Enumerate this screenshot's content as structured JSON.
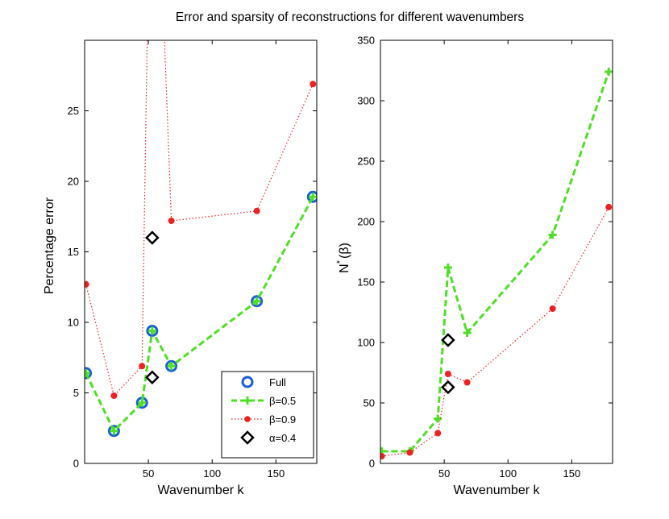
{
  "title": "Error and sparsity of reconstructions for different wavenumbers",
  "colors": {
    "full": "#1a5fd6",
    "beta05": "#4de024",
    "beta09": "#ef2020",
    "alpha": "#000000"
  },
  "chart_data": [
    {
      "type": "line",
      "panel": "left",
      "xlabel": "Wavenumber k",
      "ylabel": "Percentage error",
      "xlim": [
        0,
        182
      ],
      "ylim": [
        0,
        30
      ],
      "xticks": [
        50,
        100,
        150
      ],
      "yticks": [
        0,
        5,
        10,
        15,
        20,
        25
      ],
      "legend_position": "bottom-right",
      "series": [
        {
          "name": "Full",
          "style": "circle-markers",
          "x": [
            1,
            23,
            45,
            53,
            68,
            135,
            179
          ],
          "y": [
            6.4,
            2.3,
            4.3,
            9.4,
            6.9,
            11.5,
            18.9
          ]
        },
        {
          "name": "β=0.5",
          "style": "dashed-plus",
          "x": [
            1,
            23,
            45,
            53,
            68,
            135,
            179
          ],
          "y": [
            6.4,
            2.3,
            4.3,
            9.4,
            6.9,
            11.5,
            18.9
          ]
        },
        {
          "name": "β=0.9",
          "style": "dotted-dot",
          "x": [
            1,
            23,
            45,
            53,
            68,
            135,
            179
          ],
          "y": [
            12.7,
            4.8,
            6.9,
            null,
            17.2,
            17.9,
            26.9
          ],
          "note": "value at k=53 is beyond the upper axis limit"
        },
        {
          "name": "α=0.4",
          "style": "diamond-markers",
          "x": [
            53,
            53
          ],
          "y": [
            16.0,
            6.1
          ]
        }
      ],
      "legend": [
        "Full",
        "β=0.5",
        "β=0.9",
        "α=0.4"
      ]
    },
    {
      "type": "line",
      "panel": "right",
      "xlabel": "Wavenumber k",
      "ylabel_main": "N",
      "ylabel_sup": "*",
      "ylabel_tail": "(β)",
      "xlim": [
        0,
        182
      ],
      "ylim": [
        0,
        350
      ],
      "xticks": [
        50,
        100,
        150
      ],
      "yticks": [
        0,
        50,
        100,
        150,
        200,
        250,
        300,
        350
      ],
      "series": [
        {
          "name": "β=0.5",
          "style": "dashed-plus",
          "x": [
            1,
            23,
            45,
            53,
            68,
            135,
            179
          ],
          "y": [
            10,
            10,
            37,
            162,
            108,
            189,
            324
          ]
        },
        {
          "name": "β=0.9",
          "style": "dotted-dot",
          "x": [
            1,
            23,
            45,
            53,
            68,
            135,
            179
          ],
          "y": [
            6,
            9,
            25,
            74,
            67,
            128,
            212
          ]
        },
        {
          "name": "α=0.4",
          "style": "diamond-markers",
          "x": [
            53,
            53
          ],
          "y": [
            102,
            63
          ]
        }
      ]
    }
  ]
}
